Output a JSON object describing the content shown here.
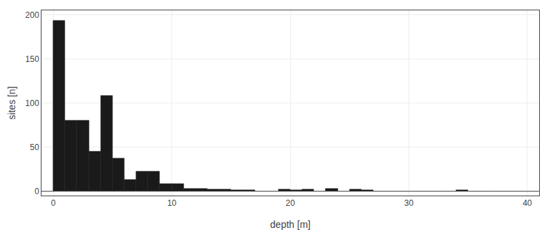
{
  "chart_data": {
    "type": "histogram",
    "xlabel": "depth [m]",
    "ylabel": "sites [n]",
    "color": "#1a1a1a",
    "xlim": [
      -1,
      41
    ],
    "ylim": [
      -5,
      205
    ],
    "xticks": [
      0,
      10,
      20,
      30,
      40
    ],
    "yticks": [
      0,
      50,
      100,
      150,
      200
    ],
    "grid": true,
    "bins": [
      -1,
      0,
      1,
      2,
      3,
      4,
      5,
      6,
      7,
      8,
      9,
      10,
      11,
      12,
      13,
      14,
      15,
      16,
      17,
      18,
      19,
      20,
      21,
      22,
      23,
      24,
      25,
      26,
      27,
      28,
      29,
      30,
      31,
      32,
      33,
      34,
      35,
      36,
      37,
      38,
      39,
      40,
      41
    ],
    "values": [
      0,
      193,
      80,
      80,
      45,
      108,
      37,
      13,
      22,
      22,
      8,
      8,
      3,
      3,
      2,
      2,
      1,
      1,
      0,
      0,
      2,
      1,
      2,
      0,
      3,
      0,
      2,
      1,
      0,
      0,
      0,
      0,
      0,
      0,
      0,
      1,
      0,
      0,
      0,
      0,
      0,
      0
    ]
  }
}
